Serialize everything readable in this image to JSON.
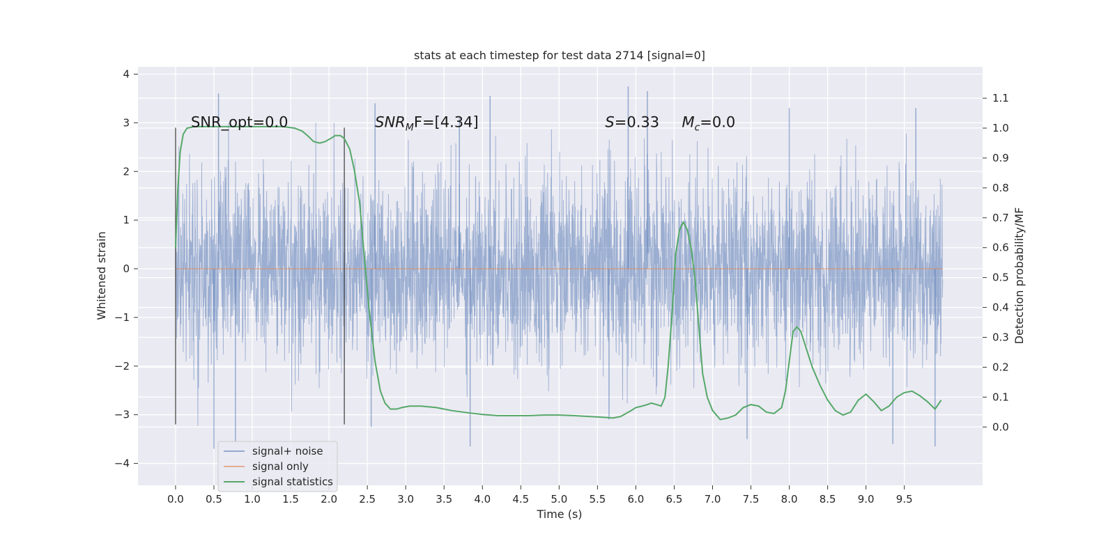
{
  "chart_data": {
    "type": "line",
    "title": "stats at each timestep for test data 2714 [signal=0]",
    "xlabel": "Time (s)",
    "ylabel": "Whitened strain",
    "ylabel_right": "Detection probability/MF",
    "xlim": [
      -0.49,
      10.52
    ],
    "ylim": [
      -4.45,
      4.15
    ],
    "ylim_right": [
      -0.195,
      1.205
    ],
    "x_ticks": [
      "0.0",
      "0.5",
      "1.0",
      "1.5",
      "2.0",
      "2.5",
      "3.0",
      "3.5",
      "4.0",
      "4.5",
      "5.0",
      "5.5",
      "6.0",
      "6.5",
      "7.0",
      "7.5",
      "8.0",
      "8.5",
      "9.0",
      "9.5"
    ],
    "y_ticks": [
      "−4",
      "−3",
      "−2",
      "−1",
      "0",
      "1",
      "2",
      "3",
      "4"
    ],
    "y_right_ticks": [
      "0.0",
      "0.1",
      "0.2",
      "0.3",
      "0.4",
      "0.5",
      "0.6",
      "0.7",
      "0.8",
      "0.9",
      "1.0",
      "1.1"
    ],
    "grid": true,
    "legend_position": "lower-left",
    "colors": {
      "noise": "#4c72b0",
      "signal": "#dd8452",
      "stats": "#55a868",
      "background": "#eaeaf2",
      "vlines": "#444444"
    },
    "annotations": [
      {
        "text": "SNR_opt=0.0",
        "x": 0.2,
        "y": 3.0
      },
      {
        "text": "SNR",
        "sub": "M",
        "tail": "F=[4.34]",
        "x": 2.6,
        "y": 3.0,
        "italic": true
      },
      {
        "text": "S",
        "tail": "=0.33",
        "x": 5.6,
        "y": 3.0,
        "italic": true
      },
      {
        "text": "M",
        "sub": "c",
        "tail": "=0.0",
        "x": 6.6,
        "y": 3.0,
        "italic": true
      }
    ],
    "vertical_lines": [
      {
        "x": 0.0,
        "ymin": -3.2,
        "ymax": 2.9
      },
      {
        "x": 2.2,
        "ymin": -3.2,
        "ymax": 2.9
      }
    ],
    "series": [
      {
        "name": "signal+ noise",
        "kind": "noise-band",
        "x_range": [
          0,
          10
        ],
        "std": 0.95,
        "notable_peaks": [
          {
            "x": 0.56,
            "y": 3.6
          },
          {
            "x": 2.6,
            "y": 3.4
          },
          {
            "x": 3.7,
            "y": 3.1
          },
          {
            "x": 4.1,
            "y": 3.55
          },
          {
            "x": 5.9,
            "y": 3.75
          },
          {
            "x": 6.15,
            "y": 3.65
          },
          {
            "x": 8.0,
            "y": 3.3
          },
          {
            "x": 9.65,
            "y": 3.3
          },
          {
            "x": 0.5,
            "y": -3.7
          },
          {
            "x": 0.78,
            "y": -3.55
          },
          {
            "x": 3.84,
            "y": -3.65
          },
          {
            "x": 5.65,
            "y": -3.1
          },
          {
            "x": 7.45,
            "y": -3.5
          },
          {
            "x": 9.35,
            "y": -3.6
          },
          {
            "x": 9.9,
            "y": -3.65
          },
          {
            "x": 2.55,
            "y": -3.25
          }
        ]
      },
      {
        "name": "signal only",
        "kind": "line",
        "x": [
          0,
          10
        ],
        "y": [
          0,
          0
        ]
      },
      {
        "name": "signal statistics",
        "kind": "line",
        "axis": "right",
        "x": [
          0.0,
          0.03,
          0.06,
          0.1,
          0.15,
          0.25,
          0.4,
          0.6,
          0.8,
          1.0,
          1.2,
          1.4,
          1.55,
          1.65,
          1.72,
          1.8,
          1.88,
          1.95,
          2.02,
          2.08,
          2.15,
          2.2,
          2.27,
          2.33,
          2.4,
          2.45,
          2.52,
          2.6,
          2.67,
          2.73,
          2.8,
          2.88,
          2.95,
          3.05,
          3.2,
          3.4,
          3.6,
          3.8,
          4.0,
          4.2,
          4.4,
          4.6,
          4.8,
          5.0,
          5.2,
          5.4,
          5.6,
          5.7,
          5.8,
          5.87,
          5.94,
          6.0,
          6.08,
          6.15,
          6.2,
          6.27,
          6.33,
          6.38,
          6.42,
          6.47,
          6.52,
          6.57,
          6.62,
          6.67,
          6.72,
          6.77,
          6.82,
          6.87,
          6.93,
          7.0,
          7.1,
          7.2,
          7.3,
          7.4,
          7.5,
          7.6,
          7.7,
          7.8,
          7.9,
          7.95,
          8.0,
          8.05,
          8.1,
          8.15,
          8.2,
          8.25,
          8.3,
          8.4,
          8.5,
          8.6,
          8.7,
          8.8,
          8.9,
          9.0,
          9.1,
          9.2,
          9.3,
          9.4,
          9.5,
          9.6,
          9.7,
          9.8,
          9.9,
          9.98
        ],
        "y": [
          0.6,
          0.8,
          0.92,
          0.98,
          1.0,
          1.005,
          1.005,
          1.005,
          1.005,
          1.005,
          1.005,
          1.005,
          1.0,
          0.99,
          0.975,
          0.955,
          0.95,
          0.955,
          0.965,
          0.975,
          0.975,
          0.965,
          0.93,
          0.86,
          0.75,
          0.6,
          0.4,
          0.22,
          0.12,
          0.08,
          0.06,
          0.06,
          0.065,
          0.07,
          0.07,
          0.065,
          0.055,
          0.048,
          0.042,
          0.038,
          0.038,
          0.038,
          0.04,
          0.04,
          0.038,
          0.035,
          0.032,
          0.03,
          0.035,
          0.045,
          0.055,
          0.065,
          0.07,
          0.075,
          0.08,
          0.075,
          0.07,
          0.1,
          0.2,
          0.37,
          0.58,
          0.66,
          0.685,
          0.66,
          0.6,
          0.5,
          0.34,
          0.18,
          0.1,
          0.055,
          0.025,
          0.03,
          0.04,
          0.065,
          0.075,
          0.07,
          0.05,
          0.045,
          0.065,
          0.12,
          0.22,
          0.32,
          0.335,
          0.32,
          0.28,
          0.24,
          0.2,
          0.14,
          0.09,
          0.055,
          0.04,
          0.05,
          0.09,
          0.11,
          0.085,
          0.055,
          0.07,
          0.1,
          0.115,
          0.12,
          0.105,
          0.085,
          0.06,
          0.09
        ]
      }
    ]
  }
}
